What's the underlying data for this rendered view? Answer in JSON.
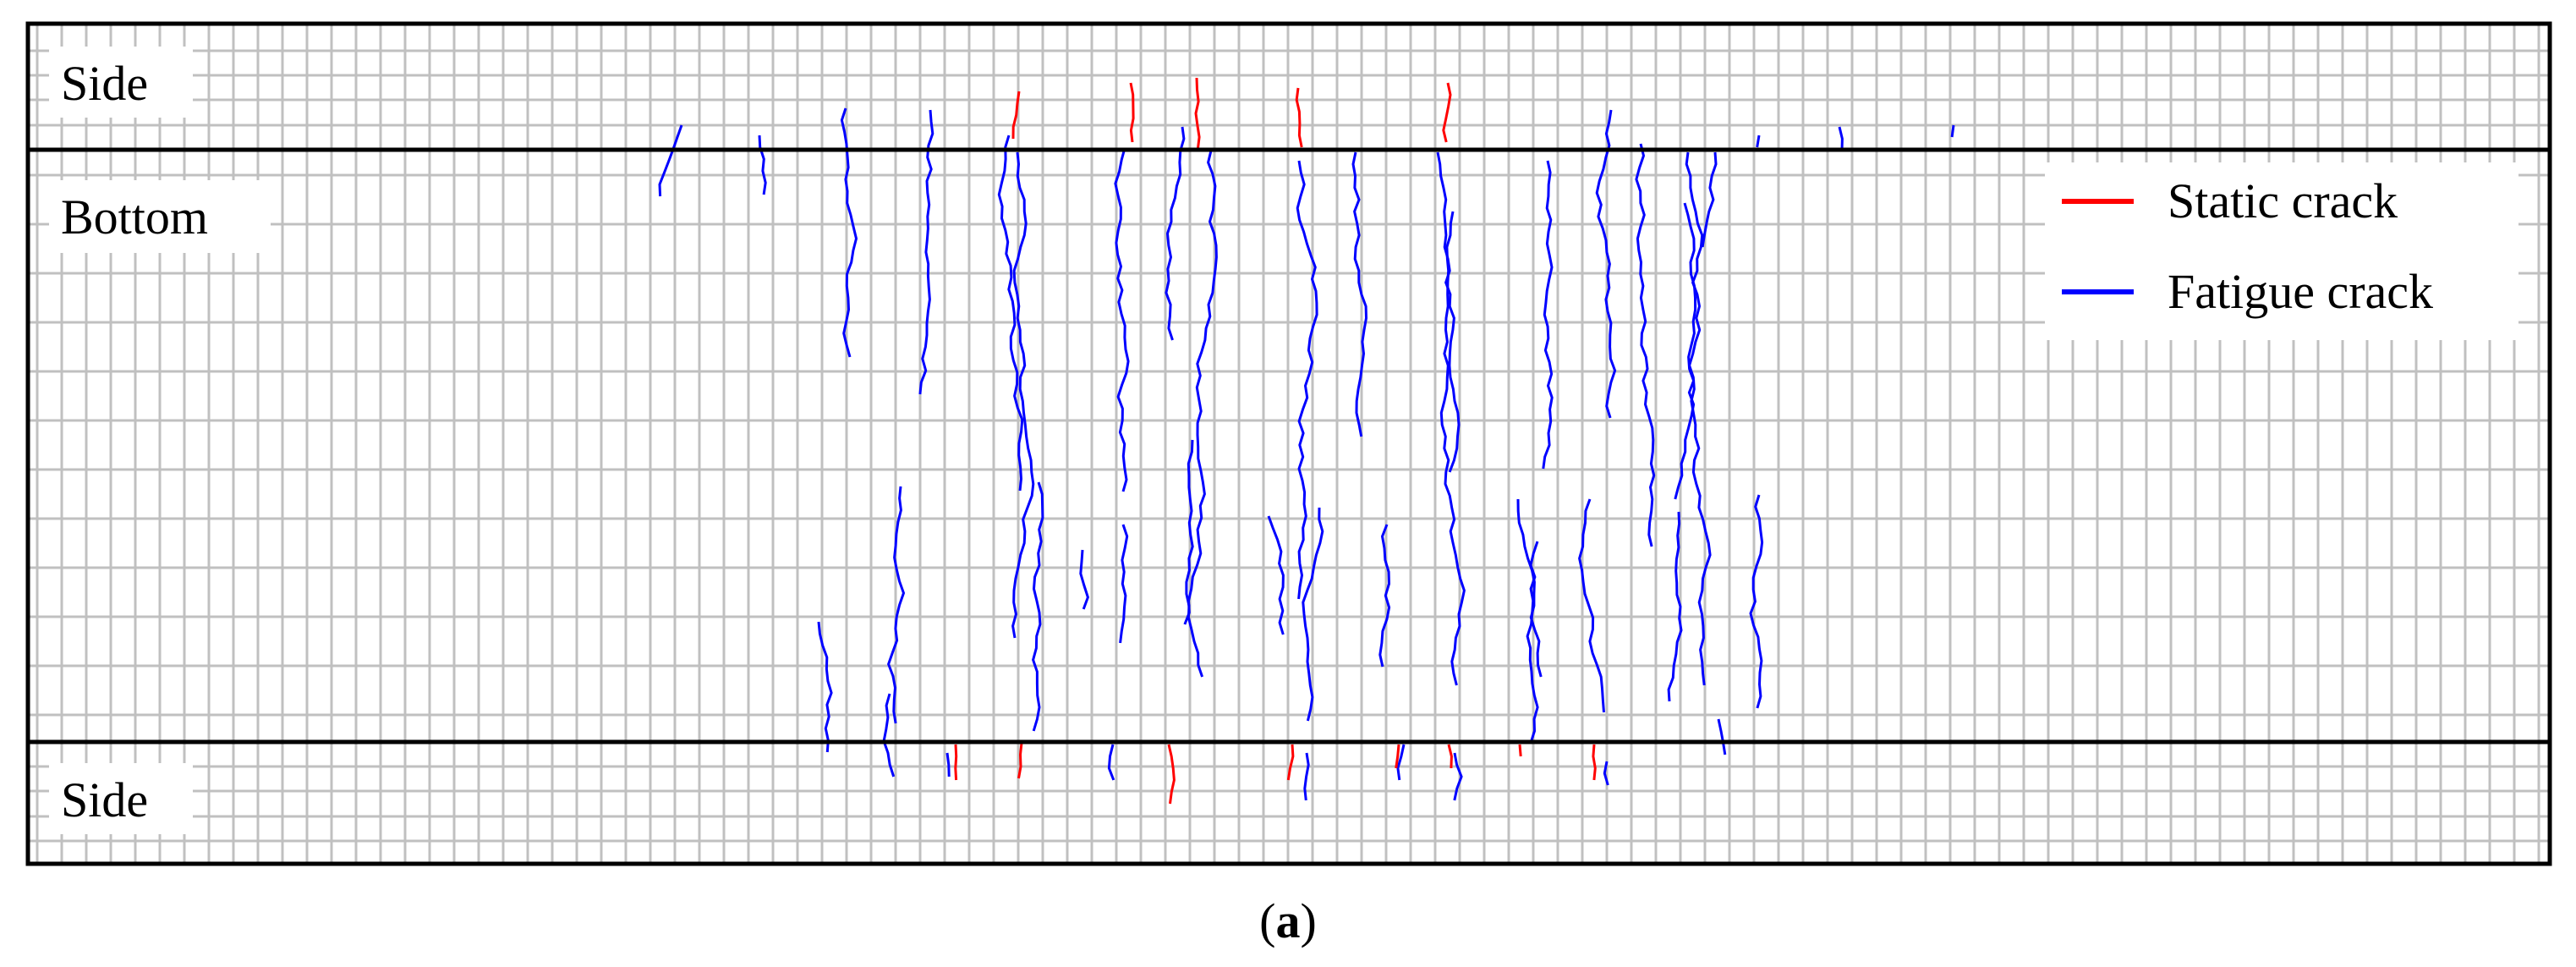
{
  "regions": {
    "top_side": "Side",
    "bottom_face": "Bottom",
    "bottom_side": "Side"
  },
  "legend": {
    "static_label": "Static crack",
    "fatigue_label": "Fatigue crack",
    "static_color": "#ff0000",
    "fatigue_color": "#0000ff"
  },
  "caption": {
    "open": "(",
    "letter": "a",
    "close": ")"
  },
  "colors": {
    "grid": "#c0c0c0",
    "border": "#000000"
  }
}
